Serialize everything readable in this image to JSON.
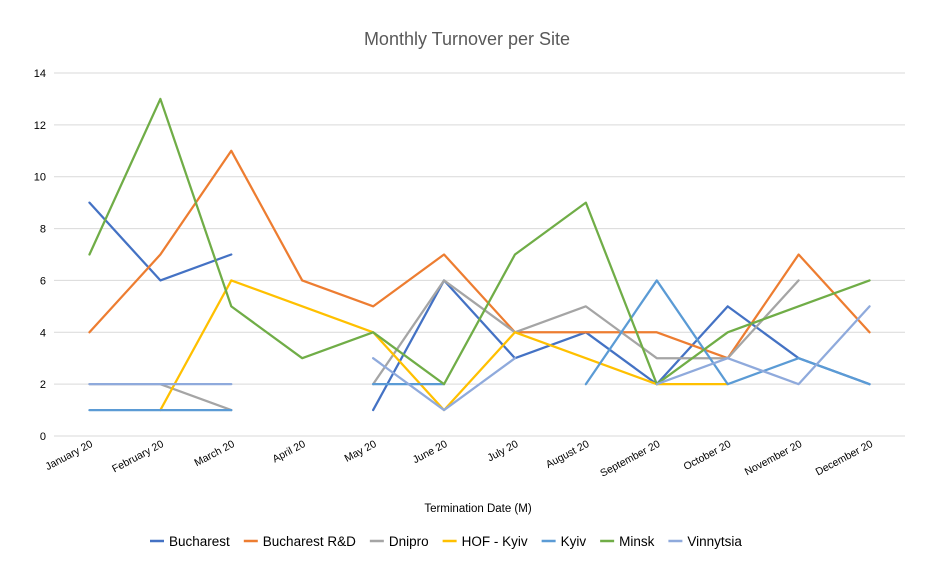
{
  "chart_data": {
    "type": "line",
    "title": "Monthly Turnover per Site",
    "xlabel": "Termination Date (M)",
    "ylabel": "",
    "ylim": [
      0,
      14
    ],
    "yticks": [
      0,
      2,
      4,
      6,
      8,
      10,
      12,
      14
    ],
    "grid": true,
    "legend_position": "bottom",
    "categories": [
      "January 20",
      "February 20",
      "March 20",
      "April 20",
      "May 20",
      "June 20",
      "July 20",
      "August 20",
      "September 20",
      "October 20",
      "November 20",
      "December 20"
    ],
    "series": [
      {
        "name": "Bucharest",
        "color": "#4472C4",
        "values": [
          9,
          6,
          7,
          null,
          1,
          6,
          3,
          4,
          2,
          5,
          3,
          2
        ]
      },
      {
        "name": "Bucharest R&D",
        "color": "#ED7D31",
        "values": [
          4,
          7,
          11,
          6,
          5,
          7,
          4,
          4,
          4,
          3,
          7,
          4
        ]
      },
      {
        "name": "Dnipro",
        "color": "#A5A5A5",
        "values": [
          2,
          2,
          1,
          null,
          2,
          6,
          4,
          5,
          3,
          3,
          6,
          null
        ]
      },
      {
        "name": "HOF - Kyiv",
        "color": "#FFC000",
        "values": [
          null,
          1,
          6,
          5,
          4,
          1,
          4,
          3,
          2,
          2,
          null,
          null
        ]
      },
      {
        "name": "Kyiv",
        "color": "#5B9BD5",
        "values": [
          1,
          1,
          1,
          null,
          2,
          2,
          null,
          2,
          6,
          2,
          3,
          2
        ]
      },
      {
        "name": "Minsk",
        "color": "#70AD47",
        "values": [
          7,
          13,
          5,
          3,
          4,
          2,
          7,
          9,
          2,
          4,
          5,
          6
        ]
      },
      {
        "name": "Vinnytsia",
        "color": "#8FAADC",
        "values": [
          2,
          2,
          2,
          null,
          3,
          1,
          3,
          null,
          2,
          3,
          2,
          5
        ]
      }
    ]
  }
}
